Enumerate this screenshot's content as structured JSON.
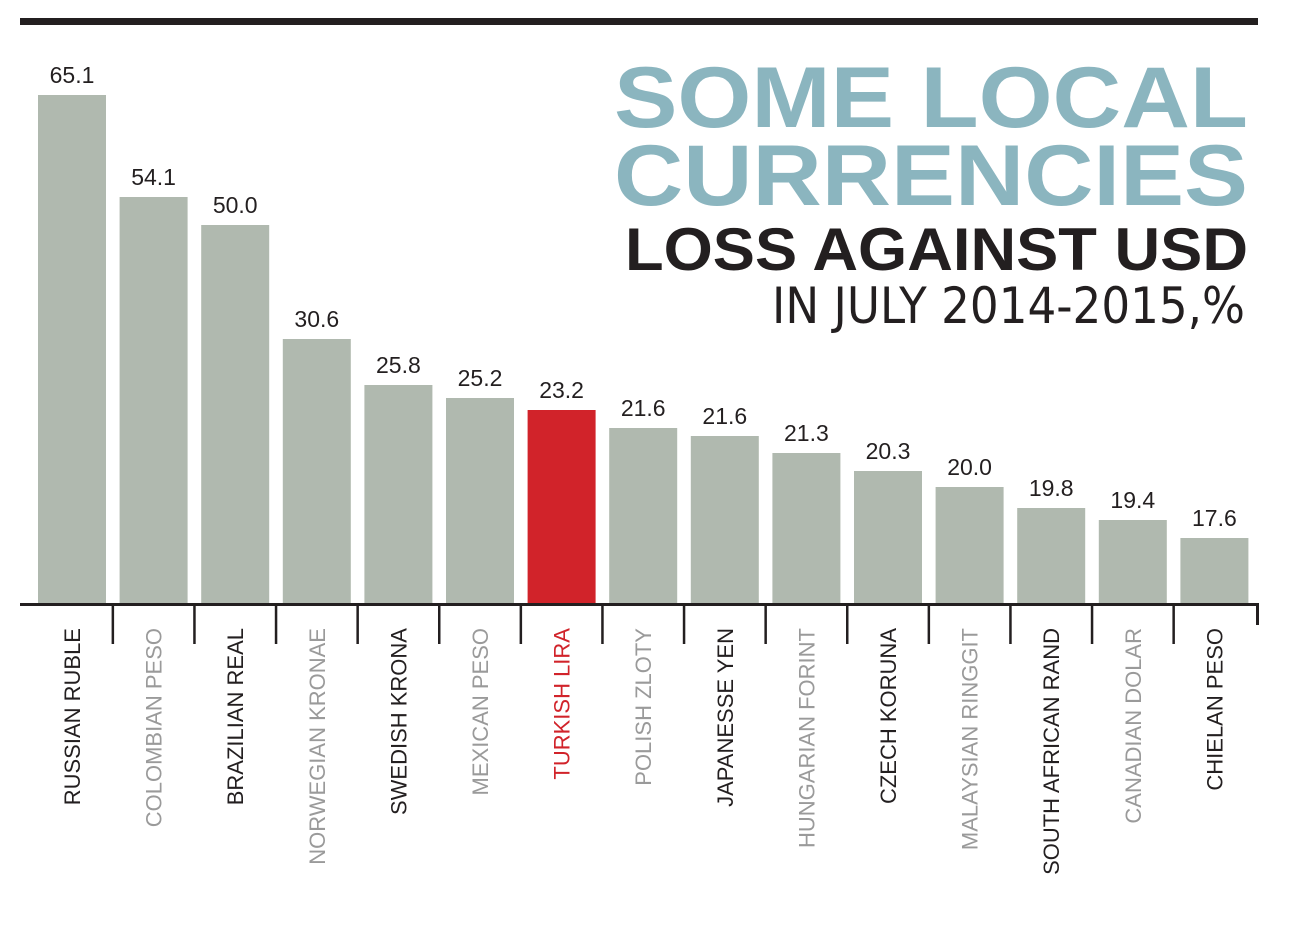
{
  "chart_data": {
    "type": "bar",
    "title_lines": [
      "SOME LOCAL",
      "CURRENCIES",
      "LOSS AGAINST USD",
      "IN JULY 2014-2015,%"
    ],
    "title": "SOME LOCAL CURRENCIES LOSS AGAINST USD IN JULY 2014-2015,%",
    "xlabel": "",
    "ylabel": "",
    "categories": [
      "RUSSIAN RUBLE",
      "COLOMBIAN PESO",
      "BRAZILIAN REAL",
      "NORWEGIAN KRONAE",
      "SWEDISH KRONA",
      "MEXICAN PESO",
      "TURKISH LIRA",
      "POLISH ZLOTY",
      "JAPANESSE YEN",
      "HUNGARIAN FORINT",
      "CZECH KORUNA",
      "MALAYSIAN RINGGIT",
      "SOUTH AFRICAN RAND",
      "CANADIAN DOLAR",
      "CHIELAN PESO"
    ],
    "values": [
      65.1,
      54.1,
      50.0,
      30.6,
      25.8,
      25.2,
      23.2,
      21.6,
      21.6,
      21.3,
      20.3,
      20.0,
      19.8,
      19.4,
      17.6
    ],
    "value_labels": [
      "65.1",
      "54.1",
      "50.0",
      "30.6",
      "25.8",
      "25.2",
      "23.2",
      "21.6",
      "21.6",
      "21.3",
      "20.3",
      "20.0",
      "19.8",
      "19.4",
      "17.6"
    ],
    "highlight": "TURKISH LIRA",
    "grid": false,
    "legend": "none"
  },
  "colors": {
    "bar": "#b0b9af",
    "highlight": "#d1232a",
    "title_accent": "#8bb5bf",
    "text_dark": "#231f20",
    "text_gray": "#9a9a9a"
  }
}
